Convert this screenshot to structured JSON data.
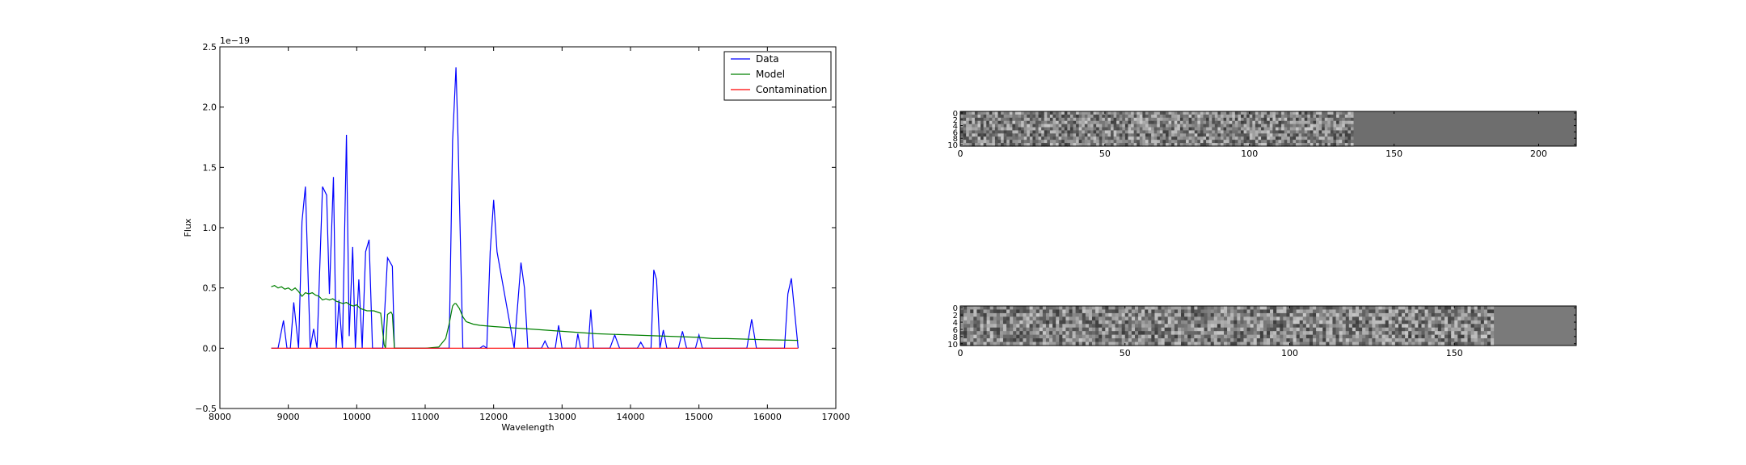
{
  "chart_data": [
    {
      "type": "line",
      "title": "",
      "xlabel": "Wavelength",
      "ylabel": "Flux",
      "xlim": [
        8000,
        17000
      ],
      "ylim": [
        -0.5,
        2.5
      ],
      "y_multiplier": "1e−19",
      "xticks": [
        8000,
        9000,
        10000,
        11000,
        12000,
        13000,
        14000,
        15000,
        16000,
        17000
      ],
      "yticks": [
        -0.5,
        0.0,
        0.5,
        1.0,
        1.5,
        2.0,
        2.5
      ],
      "legend_position": "top-right",
      "series": [
        {
          "name": "Data",
          "color": "#0000ff",
          "x": [
            8750,
            8850,
            8930,
            8980,
            9030,
            9080,
            9150,
            9200,
            9250,
            9320,
            9370,
            9420,
            9500,
            9560,
            9600,
            9660,
            9700,
            9740,
            9790,
            9850,
            9890,
            9940,
            9980,
            10030,
            10080,
            10130,
            10180,
            10230,
            10300,
            10380,
            10450,
            10520,
            10550,
            10600,
            11000,
            11350,
            11400,
            11450,
            11480,
            11550,
            11600,
            11800,
            11850,
            11900,
            11950,
            12000,
            12050,
            12300,
            12350,
            12400,
            12450,
            12500,
            12700,
            12750,
            12800,
            12900,
            12950,
            13000,
            13200,
            13230,
            13270,
            13380,
            13420,
            13460,
            13700,
            13770,
            13840,
            14100,
            14150,
            14200,
            14300,
            14340,
            14380,
            14430,
            14480,
            14530,
            14700,
            14760,
            14820,
            14950,
            15000,
            15050,
            15150,
            15700,
            15770,
            15840,
            16250,
            16300,
            16350,
            16450
          ],
          "y": [
            0.0,
            0.0,
            0.23,
            0.0,
            0.0,
            0.38,
            0.0,
            1.05,
            1.34,
            0.0,
            0.16,
            0.0,
            1.34,
            1.27,
            0.45,
            1.42,
            0.0,
            0.4,
            0.0,
            1.77,
            0.1,
            0.84,
            0.0,
            0.57,
            0.0,
            0.8,
            0.9,
            0.0,
            0.0,
            0.0,
            0.75,
            0.68,
            0.0,
            0.0,
            0.0,
            0.0,
            1.72,
            2.33,
            1.75,
            0.0,
            0.0,
            0.0,
            0.02,
            0.0,
            0.8,
            1.23,
            0.8,
            0.0,
            0.35,
            0.71,
            0.5,
            0.0,
            0.0,
            0.06,
            0.0,
            0.0,
            0.19,
            0.0,
            0.0,
            0.12,
            0.0,
            0.0,
            0.32,
            0.0,
            0.0,
            0.11,
            0.0,
            0.0,
            0.05,
            0.0,
            0.0,
            0.65,
            0.57,
            0.0,
            0.15,
            0.0,
            0.0,
            0.14,
            0.0,
            0.0,
            0.11,
            0.0,
            0.0,
            0.0,
            0.24,
            0.0,
            0.0,
            0.45,
            0.58,
            0.0
          ]
        },
        {
          "name": "Model",
          "color": "#008000",
          "x": [
            8750,
            8800,
            8850,
            8900,
            8950,
            9000,
            9050,
            9100,
            9150,
            9200,
            9250,
            9300,
            9350,
            9400,
            9450,
            9500,
            9550,
            9600,
            9650,
            9700,
            9750,
            9800,
            9850,
            9900,
            9950,
            10000,
            10050,
            10100,
            10150,
            10200,
            10250,
            10300,
            10350,
            10400,
            10420,
            10450,
            10500,
            10520,
            10550,
            10600,
            11000,
            11200,
            11300,
            11350,
            11400,
            11430,
            11450,
            11500,
            11550,
            11600,
            11700,
            11800,
            12000,
            12500,
            13000,
            13500,
            14000,
            14500,
            15000,
            15200,
            15400,
            16000,
            16450
          ],
          "y": [
            0.51,
            0.52,
            0.5,
            0.51,
            0.49,
            0.5,
            0.48,
            0.5,
            0.47,
            0.43,
            0.46,
            0.45,
            0.46,
            0.44,
            0.43,
            0.4,
            0.41,
            0.4,
            0.41,
            0.39,
            0.38,
            0.37,
            0.38,
            0.36,
            0.35,
            0.36,
            0.33,
            0.32,
            0.31,
            0.31,
            0.31,
            0.3,
            0.29,
            0.03,
            0.0,
            0.28,
            0.3,
            0.28,
            0.0,
            0.0,
            0.0,
            0.01,
            0.08,
            0.2,
            0.35,
            0.37,
            0.37,
            0.33,
            0.26,
            0.22,
            0.2,
            0.19,
            0.18,
            0.16,
            0.14,
            0.12,
            0.11,
            0.1,
            0.09,
            0.08,
            0.08,
            0.07,
            0.065
          ]
        },
        {
          "name": "Contamination",
          "color": "#ff0000",
          "x": [
            8750,
            16450
          ],
          "y": [
            0.0,
            0.0
          ]
        }
      ]
    },
    {
      "type": "heatmap",
      "title": "",
      "xticks": [
        0,
        50,
        100,
        150,
        200
      ],
      "yticks": [
        0,
        2,
        4,
        6,
        8,
        10
      ],
      "xlim": [
        0,
        213
      ],
      "ylim": [
        11,
        0
      ],
      "flat_from_x": 136,
      "flat_color": "#6e6e6e",
      "colormap": "gray"
    },
    {
      "type": "heatmap",
      "title": "",
      "xticks": [
        0,
        50,
        100,
        150
      ],
      "yticks": [
        0,
        2,
        4,
        6,
        8,
        10
      ],
      "xlim": [
        0,
        187
      ],
      "ylim": [
        11,
        0
      ],
      "flat_from_x": 162,
      "flat_color": "#7a7a7a",
      "colormap": "gray"
    }
  ]
}
